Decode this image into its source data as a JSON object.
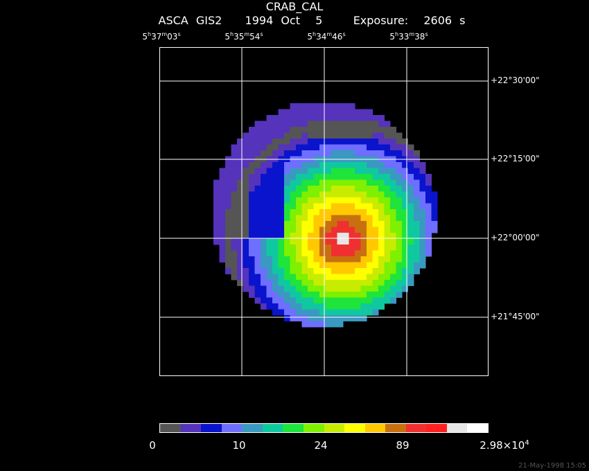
{
  "title": "CRAB_CAL",
  "subtitle": "ASCA GIS2   1994 Oct  5    Exposure:  2606 s",
  "ra_labels": [
    {
      "h": "5",
      "m": "37",
      "s": "03"
    },
    {
      "h": "5",
      "m": "35",
      "s": "54"
    },
    {
      "h": "5",
      "m": "34",
      "s": "46"
    },
    {
      "h": "5",
      "m": "33",
      "s": "38"
    }
  ],
  "dec_labels": [
    "+22°30'00\"",
    "+22°15'00\"",
    "+22°00'00\"",
    "+21°45'00\""
  ],
  "colorbar": {
    "labels": [
      "0",
      "10",
      "24",
      "89"
    ],
    "max_label": "2.98×10",
    "max_exp": "4",
    "colors": [
      "#555555",
      "#5533bb",
      "#0a14cc",
      "#6e6eff",
      "#3a99c0",
      "#10c8a0",
      "#1ee43c",
      "#7ef000",
      "#c8ec00",
      "#ffff00",
      "#ffc800",
      "#c87010",
      "#f03030",
      "#ff2020",
      "#e6e6e6",
      "#ffffff"
    ]
  },
  "timestamp": "21-May-1998 15:05"
}
